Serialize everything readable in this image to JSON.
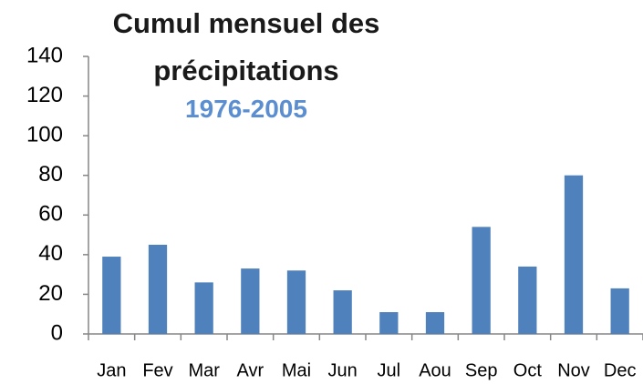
{
  "chart_data": {
    "type": "bar",
    "title": "Cumul mensuel des précipitations",
    "subtitle": "1976-2005",
    "categories": [
      "Jan",
      "Fev",
      "Mar",
      "Avr",
      "Mai",
      "Jun",
      "Jul",
      "Aou",
      "Sep",
      "Oct",
      "Nov",
      "Dec"
    ],
    "values": [
      39,
      45,
      26,
      33,
      32,
      22,
      11,
      11,
      54,
      34,
      80,
      23
    ],
    "color": "#4f81bd",
    "ylim": [
      0,
      140
    ],
    "yticks": [
      0,
      20,
      40,
      60,
      80,
      100,
      120,
      140
    ],
    "grid": false
  }
}
